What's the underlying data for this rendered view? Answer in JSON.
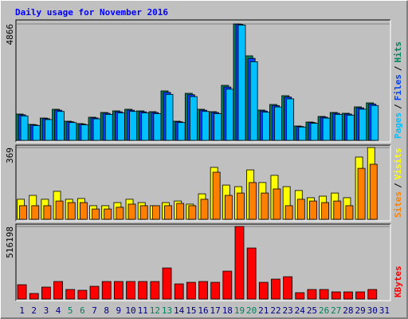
{
  "chart_data": [
    {
      "type": "bar",
      "title": "Daily usage for November 2016",
      "legend_separator": "/",
      "ylim": [
        0,
        4866
      ],
      "yticks": [
        4866
      ],
      "series": [
        {
          "name": "Hits",
          "color": "#00805C",
          "values": [
            1100,
            667,
            933,
            1300,
            800,
            700,
            967,
            1167,
            1233,
            1300,
            1233,
            1200,
            2067,
            800,
            1967,
            1300,
            1200,
            2300,
            4866,
            3533,
            1267,
            1500,
            1867,
            600,
            767,
            1000,
            1167,
            1133,
            1400,
            1567,
            null
          ]
        },
        {
          "name": "Files",
          "color": "#0040FF",
          "values": [
            1067,
            647,
            905,
            1261,
            776,
            679,
            938,
            1132,
            1196,
            1261,
            1196,
            1164,
            2005,
            776,
            1908,
            1261,
            1164,
            2231,
            4850,
            3427,
            1229,
            1455,
            1811,
            582,
            744,
            970,
            1132,
            1099,
            1358,
            1520,
            null
          ]
        },
        {
          "name": "Pages",
          "color": "#00C0FF",
          "values": [
            1023,
            620,
            868,
            1209,
            744,
            651,
            899,
            1085,
            1147,
            1209,
            1147,
            1116,
            1922,
            744,
            1829,
            1209,
            1116,
            2139,
            4820,
            3286,
            1178,
            1395,
            1736,
            558,
            713,
            930,
            1085,
            1054,
            1302,
            1457,
            null
          ]
        }
      ]
    },
    {
      "type": "bar",
      "legend_separator": "/",
      "ylim": [
        0,
        369
      ],
      "yticks": [
        369
      ],
      "series": [
        {
          "name": "Visits",
          "color": "#FFFF00",
          "values": [
            103,
            123,
            103,
            144,
            103,
            107,
            70,
            70,
            86,
            103,
            86,
            70,
            86,
            94,
            78,
            131,
            267,
            176,
            168,
            254,
            189,
            226,
            168,
            148,
            111,
            119,
            135,
            111,
            320,
            369,
            null
          ]
        },
        {
          "name": "Sites",
          "color": "#FF8000",
          "values": [
            70,
            70,
            70,
            94,
            86,
            86,
            53,
            53,
            62,
            78,
            70,
            70,
            70,
            82,
            70,
            103,
            242,
            123,
            135,
            189,
            135,
            156,
            70,
            103,
            94,
            86,
            94,
            70,
            262,
            283,
            null
          ]
        }
      ]
    },
    {
      "type": "bar",
      "ylim": [
        0,
        516198
      ],
      "yticks": [
        516198
      ],
      "categories": [
        "1",
        "2",
        "3",
        "4",
        "5",
        "6",
        "7",
        "8",
        "9",
        "10",
        "11",
        "12",
        "13",
        "14",
        "15",
        "16",
        "17",
        "18",
        "19",
        "20",
        "21",
        "22",
        "23",
        "24",
        "25",
        "26",
        "27",
        "28",
        "29",
        "30",
        "31"
      ],
      "category_colors": [
        "#000080",
        "#000080",
        "#000080",
        "#000080",
        "#00805C",
        "#00805C",
        "#000080",
        "#000080",
        "#000080",
        "#000080",
        "#000080",
        "#00805C",
        "#00805C",
        "#000080",
        "#000080",
        "#000080",
        "#000080",
        "#000080",
        "#00805C",
        "#00805C",
        "#000080",
        "#000080",
        "#000080",
        "#000080",
        "#000080",
        "#00805C",
        "#00805C",
        "#000080",
        "#000080",
        "#000080",
        "#000080"
      ],
      "series": [
        {
          "name": "KBytes",
          "color": "#FF0000",
          "values": [
            102100,
            39700,
            85100,
            124800,
            68000,
            62400,
            90800,
            124800,
            124800,
            124800,
            124800,
            124800,
            221200,
            107800,
            119100,
            124800,
            119100,
            198500,
            516198,
            363000,
            119100,
            141800,
            158800,
            45400,
            68000,
            68000,
            51000,
            51000,
            51000,
            68000,
            null
          ]
        }
      ]
    }
  ]
}
